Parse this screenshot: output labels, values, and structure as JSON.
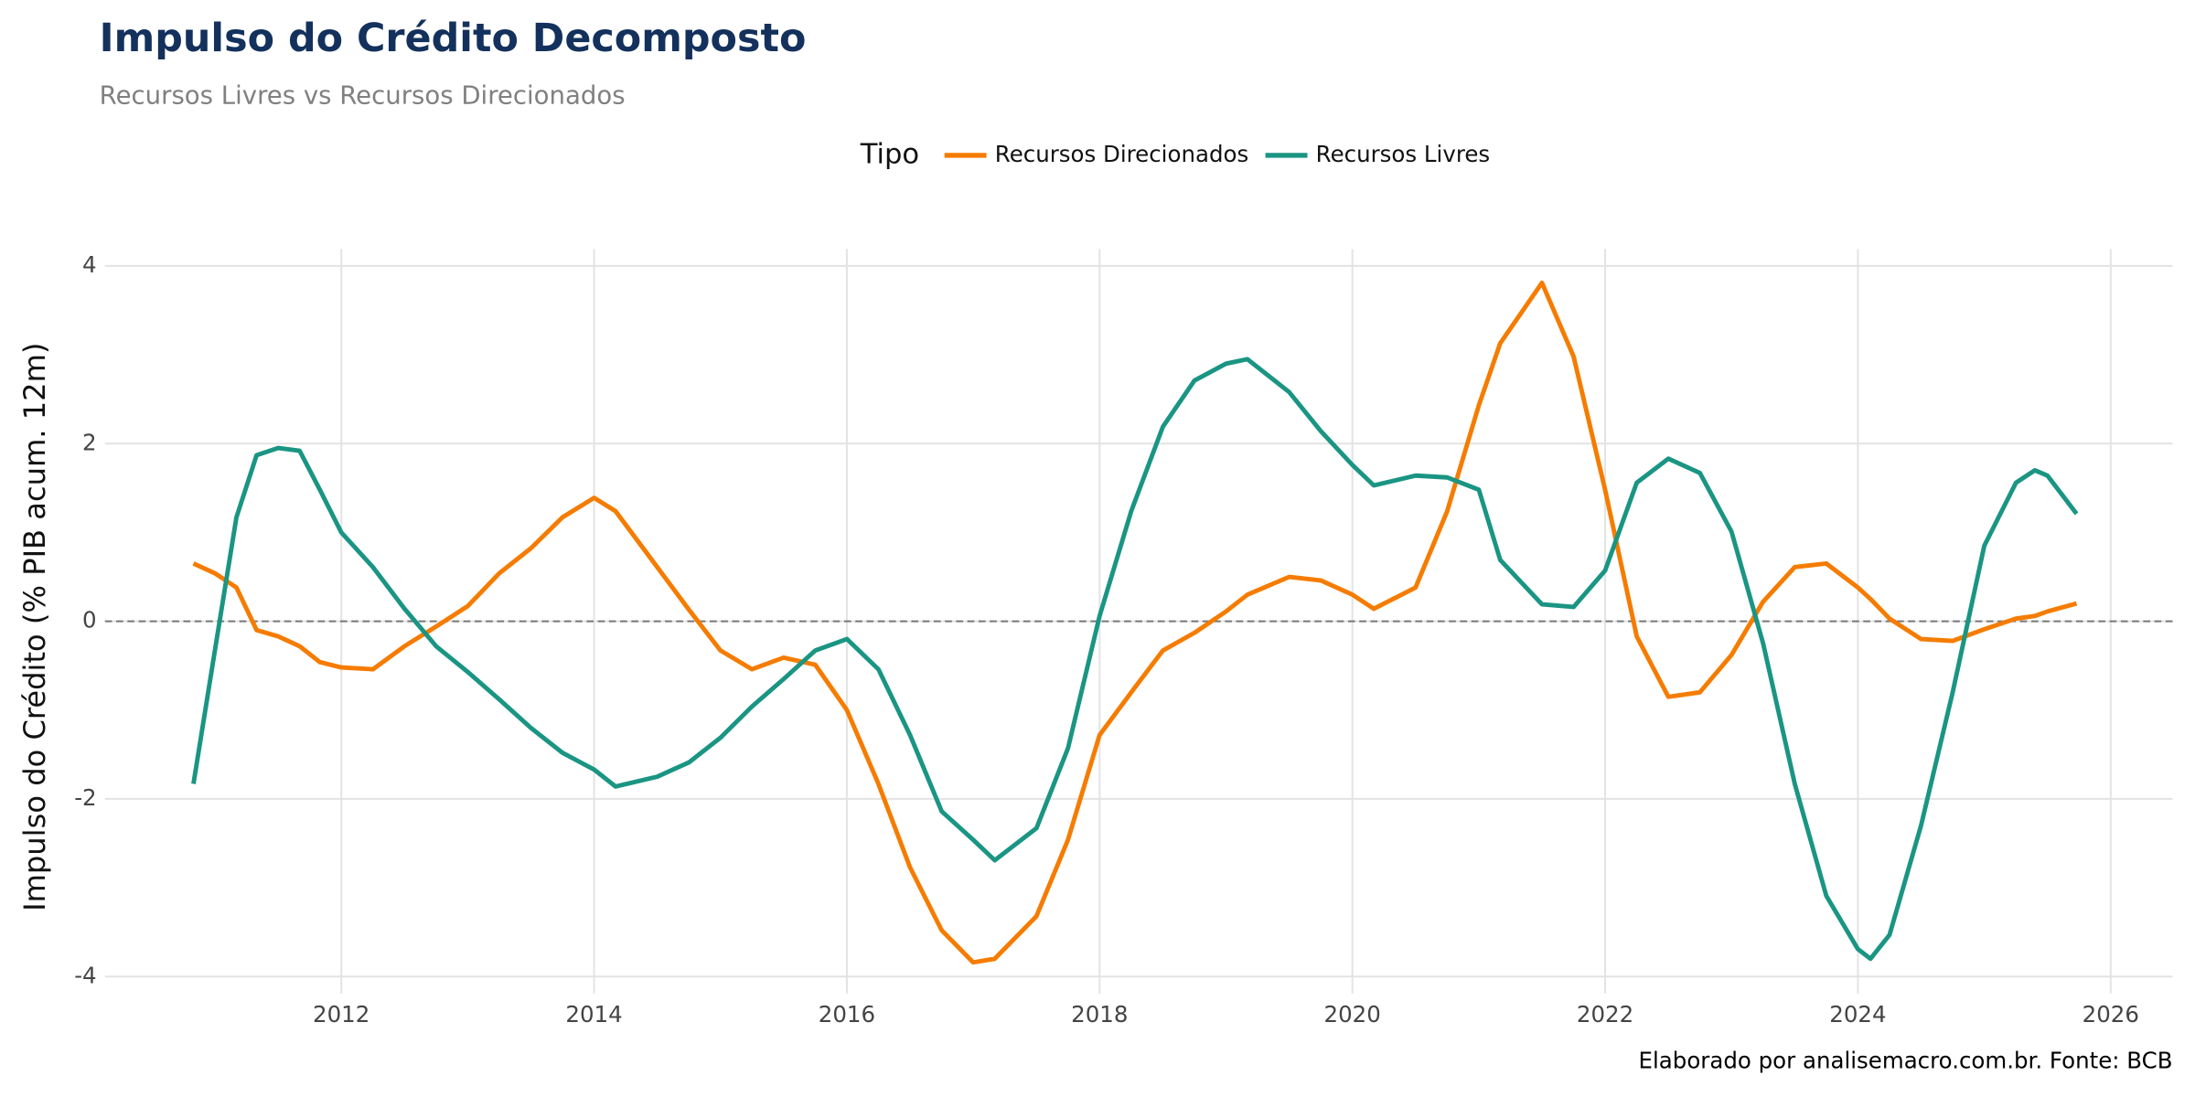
{
  "chart_data": {
    "type": "line",
    "title": "Impulso do Crédito Decomposto",
    "subtitle": "Recursos Livres vs Recursos Direcionados",
    "y_label": "Impulso do Crédito (% PIB acum. 12m)",
    "caption": "Elaborado por analisemacro.com.br. Fonte: BCB",
    "legend_title": "Tipo",
    "legend_position": "top",
    "grid": true,
    "reference_line": 0,
    "x": [
      2010.83,
      2011.0,
      2011.17,
      2011.33,
      2011.5,
      2011.67,
      2011.83,
      2012.0,
      2012.25,
      2012.5,
      2012.75,
      2013.0,
      2013.25,
      2013.5,
      2013.75,
      2014.0,
      2014.17,
      2014.5,
      2014.75,
      2015.0,
      2015.25,
      2015.5,
      2015.75,
      2016.0,
      2016.25,
      2016.5,
      2016.75,
      2017.0,
      2017.17,
      2017.5,
      2017.75,
      2018.0,
      2018.25,
      2018.5,
      2018.75,
      2019.0,
      2019.17,
      2019.5,
      2019.75,
      2020.0,
      2020.17,
      2020.5,
      2020.75,
      2021.0,
      2021.17,
      2021.5,
      2021.75,
      2022.0,
      2022.25,
      2022.5,
      2022.75,
      2023.0,
      2023.25,
      2023.5,
      2023.75,
      2024.0,
      2024.1,
      2024.25,
      2024.5,
      2024.75,
      2025.0,
      2025.25,
      2025.4,
      2025.5,
      2025.73
    ],
    "series": [
      {
        "name": "Recursos Direcionados",
        "color": "#f57c00",
        "values": [
          0.65,
          0.54,
          0.38,
          -0.1,
          -0.17,
          -0.28,
          -0.46,
          -0.52,
          -0.54,
          -0.28,
          -0.06,
          0.17,
          0.54,
          0.82,
          1.17,
          1.39,
          1.24,
          0.61,
          0.13,
          -0.33,
          -0.54,
          -0.41,
          -0.49,
          -1.0,
          -1.83,
          -2.77,
          -3.48,
          -3.84,
          -3.8,
          -3.32,
          -2.46,
          -1.28,
          -0.8,
          -0.33,
          -0.13,
          0.11,
          0.3,
          0.5,
          0.46,
          0.3,
          0.14,
          0.38,
          1.24,
          2.43,
          3.13,
          3.81,
          2.98,
          1.48,
          -0.17,
          -0.85,
          -0.8,
          -0.38,
          0.22,
          0.61,
          0.65,
          0.38,
          0.25,
          0.03,
          -0.2,
          -0.22,
          -0.09,
          0.03,
          0.06,
          0.11,
          0.2
        ]
      },
      {
        "name": "Recursos Livres",
        "color": "#1a9583",
        "values": [
          -1.83,
          -0.33,
          1.17,
          1.87,
          1.95,
          1.92,
          1.48,
          1.0,
          0.61,
          0.14,
          -0.28,
          -0.57,
          -0.88,
          -1.2,
          -1.48,
          -1.67,
          -1.86,
          -1.75,
          -1.59,
          -1.31,
          -0.96,
          -0.65,
          -0.33,
          -0.2,
          -0.54,
          -1.28,
          -2.14,
          -2.46,
          -2.69,
          -2.33,
          -1.43,
          0.06,
          1.24,
          2.19,
          2.71,
          2.9,
          2.95,
          2.58,
          2.14,
          1.76,
          1.53,
          1.64,
          1.62,
          1.48,
          0.69,
          0.19,
          0.16,
          0.57,
          1.56,
          1.83,
          1.67,
          1.01,
          -0.25,
          -1.83,
          -3.09,
          -3.69,
          -3.8,
          -3.53,
          -2.3,
          -0.8,
          0.85,
          1.56,
          1.7,
          1.64,
          1.21
        ]
      }
    ],
    "xlim": [
      2010.13,
      2026.49
    ],
    "xticks": [
      2012,
      2014,
      2016,
      2018,
      2020,
      2022,
      2024,
      2026
    ],
    "ylim": [
      -4.19,
      4.19
    ],
    "yticks": [
      -4,
      -2,
      0,
      2,
      4
    ]
  }
}
